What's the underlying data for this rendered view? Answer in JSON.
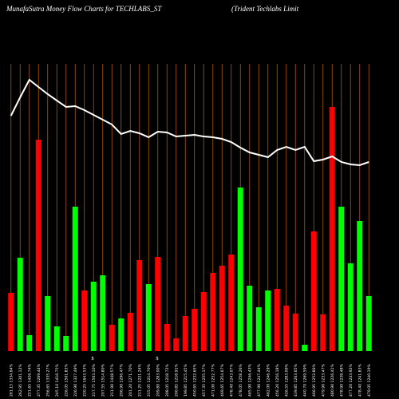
{
  "chart_data": {
    "type": "bar",
    "title": "MunafaSutra  Money Flow  Charts for TECHLABS_ST",
    "subtitle": "(Trident Techlabs Limit",
    "annotations": [
      "$",
      "$"
    ],
    "categories": [
      "261.15 1334.64%",
      "262.95 1301.12%",
      "251.65 1426.74%",
      "277.35 1269.44%",
      "256.65 1335.27%",
      "245.10 1416.75%",
      "226.05 1501.83%",
      "226.90 1327.49%",
      "220.25 1643.53%",
      "217.75 1503.10%",
      "207.55 1514.80%",
      "211.90 1448.57%",
      "206.90 1296.47%",
      "201.20 1271.70%",
      "211.25 1221.24%",
      "215.05 1214.70%",
      "209.80 1283.00%",
      "208.05 1218.72%",
      "200.85 1218.91%",
      "199.85 1215.45%",
      "450.65 1232.65%",
      "457.35 1255.17%",
      "471.00 1252.77%",
      "469.65 1254.67%",
      "478.40 1243.07%",
      "478.05 1258.26%",
      "465.90 1246.43%",
      "477.90 1247.44%",
      "462.00 1246.29%",
      "456.20 1256.18%",
      "426.55 1283.09%",
      "439.85 1263.65%",
      "440.70 1269.59%",
      "466.95 1252.86%",
      "479.90 1233.47%",
      "480.90 1226.41%",
      "478.90 1238.48%",
      "477.20 1243.92%",
      "478.40 1241.83%",
      "479.05 1240.19%"
    ],
    "values": [
      73,
      117,
      20,
      265,
      69,
      31,
      19,
      181,
      76,
      87,
      95,
      33,
      41,
      48,
      114,
      84,
      118,
      34,
      16,
      44,
      53,
      74,
      98,
      107,
      121,
      205,
      82,
      55,
      76,
      78,
      57,
      47,
      8,
      150,
      46,
      306,
      181,
      110,
      163,
      69
    ],
    "colors": [
      "#ff0000",
      "#00ff00",
      "#00ff00",
      "#ff0000",
      "#00ff00",
      "#00ff00",
      "#00ff00",
      "#00ff00",
      "#ff0000",
      "#00ff00",
      "#00ff00",
      "#ff0000",
      "#00ff00",
      "#ff0000",
      "#ff0000",
      "#00ff00",
      "#ff0000",
      "#ff0000",
      "#ff0000",
      "#ff0000",
      "#ff0000",
      "#ff0000",
      "#ff0000",
      "#ff0000",
      "#ff0000",
      "#00ff00",
      "#00ff00",
      "#00ff00",
      "#00ff00",
      "#ff0000",
      "#ff0000",
      "#ff0000",
      "#00ff00",
      "#ff0000",
      "#ff0000",
      "#ff0000",
      "#00ff00",
      "#00ff00",
      "#00ff00",
      "#00ff00"
    ],
    "line": {
      "color": "#ffffff",
      "values": [
        295,
        318,
        340,
        331,
        322,
        314,
        306,
        307,
        302,
        296,
        290,
        284,
        272,
        276,
        273,
        268,
        275,
        274,
        269,
        270,
        271,
        269,
        268,
        266,
        262,
        255,
        249,
        246,
        243,
        252,
        256,
        252,
        256,
        238,
        240,
        244,
        237,
        234,
        233,
        237
      ]
    },
    "gridline_color": "#b05a00",
    "ylim": [
      0,
      440
    ]
  }
}
